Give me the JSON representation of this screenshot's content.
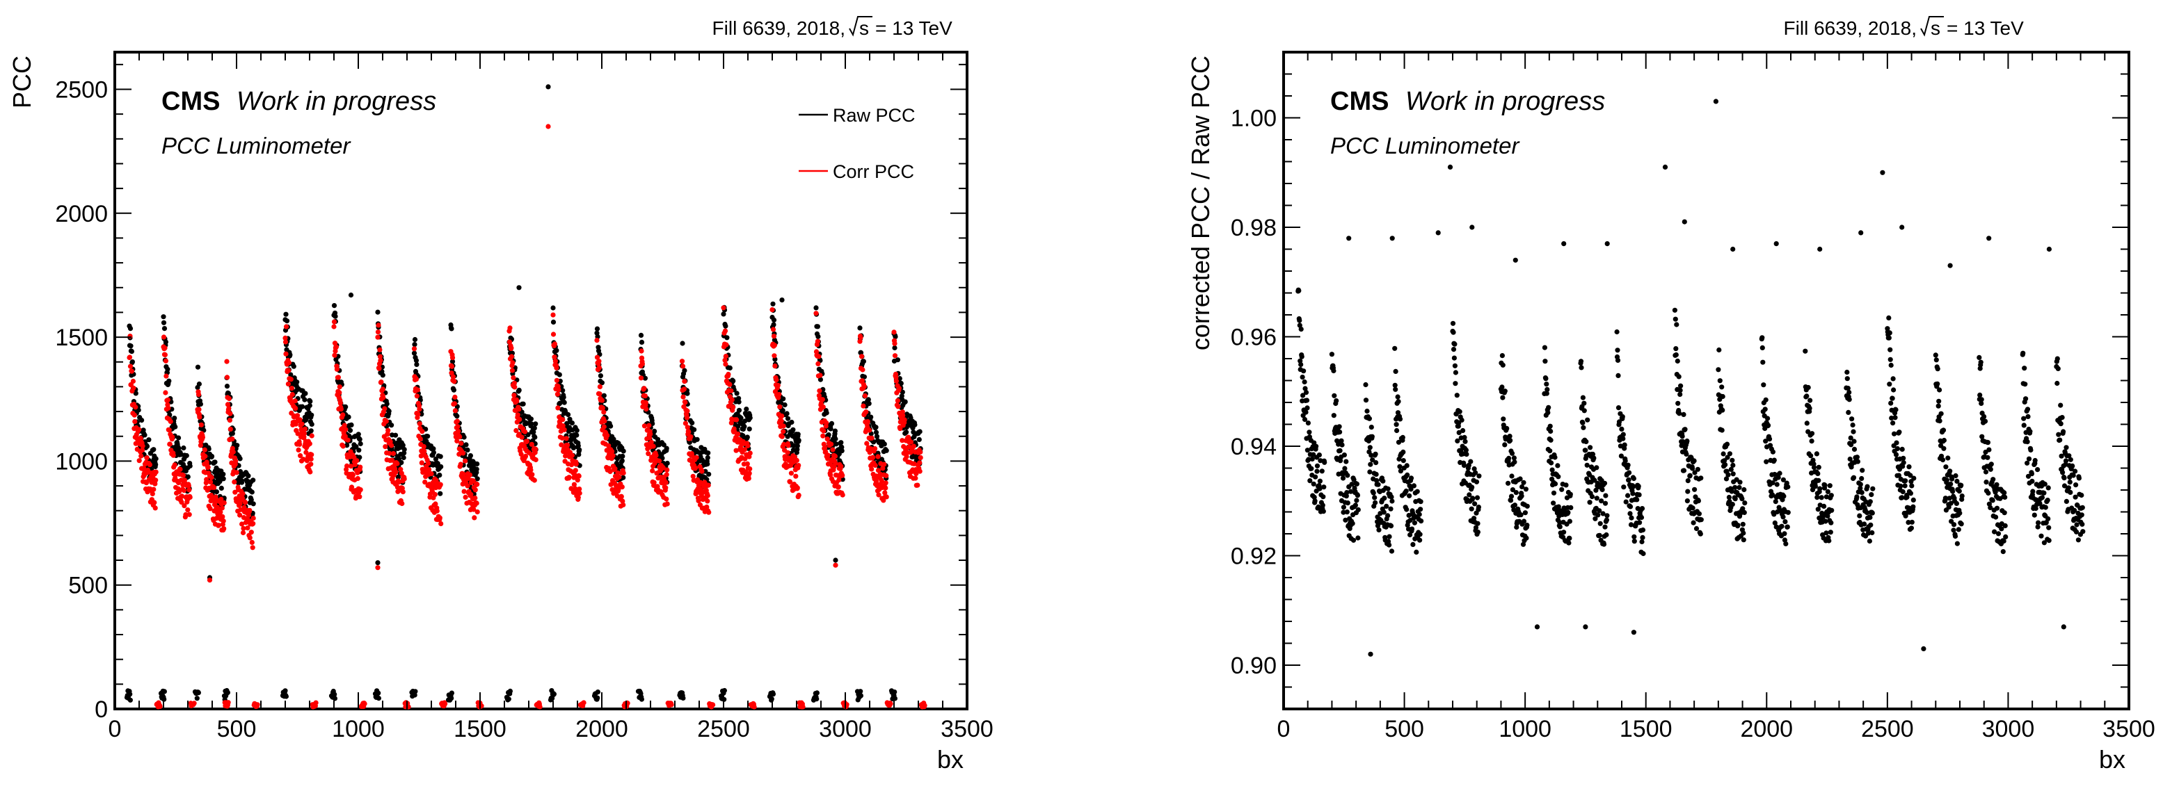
{
  "chart_data": [
    {
      "type": "scatter",
      "header": "Fill 6639,  2018,",
      "sqrt_s_label": "s",
      "energy_label": "= 13 TeV",
      "experiment_label": "CMS",
      "status_label": "Work in progress",
      "sub_label": "PCC Luminometer",
      "xlabel": "bx",
      "ylabel": "PCC",
      "xlim": [
        0,
        3500
      ],
      "ylim": [
        0,
        2650
      ],
      "xticks": [
        "0",
        "500",
        "1000",
        "1500",
        "2000",
        "2500",
        "3000",
        "3500"
      ],
      "yticks": [
        0,
        500,
        1000,
        1500,
        2000,
        2500
      ],
      "ytick_labels": [
        "0",
        "500",
        "1000",
        "1500",
        "2000",
        "2500"
      ],
      "legend_position": "top-right",
      "train_starts": [
        60,
        200,
        340,
        460,
        700,
        900,
        1080,
        1230,
        1380,
        1620,
        1800,
        1980,
        2160,
        2330,
        2500,
        2700,
        2880,
        3060,
        3200
      ],
      "train_length": 110,
      "series": [
        {
          "name": "Raw PCC",
          "color": "#000000",
          "train_peaks": [
            1520,
            1560,
            1320,
            1380,
            1590,
            1600,
            1580,
            1460,
            1520,
            1560,
            1600,
            1520,
            1470,
            1420,
            1600,
            1600,
            1590,
            1520,
            1500
          ],
          "train_ends": [
            960,
            920,
            860,
            820,
            1160,
            1000,
            960,
            920,
            900,
            1060,
            1020,
            960,
            960,
            940,
            1100,
            1020,
            980,
            980,
            1040
          ],
          "spread": 80,
          "outliers": [
            {
              "x": 1780,
              "y": 2510
            },
            {
              "x": 1660,
              "y": 1700
            },
            {
              "x": 970,
              "y": 1670
            },
            {
              "x": 2740,
              "y": 1650
            },
            {
              "x": 390,
              "y": 530
            },
            {
              "x": 1080,
              "y": 590
            },
            {
              "x": 2960,
              "y": 600
            }
          ],
          "abort_gap_level": 55
        },
        {
          "name": "Corr PCC",
          "color": "#ff0000",
          "train_peaks": [
            1480,
            1500,
            1280,
            1340,
            1540,
            1560,
            1520,
            1420,
            1470,
            1500,
            1540,
            1460,
            1420,
            1380,
            1560,
            1560,
            1540,
            1470,
            1460
          ],
          "train_ends": [
            860,
            800,
            760,
            700,
            1000,
            880,
            860,
            800,
            800,
            960,
            880,
            860,
            860,
            840,
            960,
            900,
            880,
            880,
            940
          ],
          "spread": 80,
          "outliers": [
            {
              "x": 1780,
              "y": 2350
            },
            {
              "x": 390,
              "y": 520
            },
            {
              "x": 1080,
              "y": 570
            },
            {
              "x": 2960,
              "y": 580
            }
          ],
          "abort_gap_level": 0
        }
      ]
    },
    {
      "type": "scatter",
      "header": "Fill 6639,  2018,",
      "sqrt_s_label": "s",
      "energy_label": "= 13 TeV",
      "experiment_label": "CMS",
      "status_label": "Work in progress",
      "sub_label": "PCC Luminometer",
      "xlabel": "bx",
      "ylabel": "corrected PCC  / Raw PCC",
      "xlim": [
        0,
        3500
      ],
      "ylim": [
        0.892,
        1.012
      ],
      "xticks": [
        "0",
        "500",
        "1000",
        "1500",
        "2000",
        "2500",
        "3000",
        "3500"
      ],
      "yticks": [
        0.9,
        0.92,
        0.94,
        0.96,
        0.98,
        1.0
      ],
      "ytick_labels": [
        "0.90",
        "0.92",
        "0.94",
        "0.96",
        "0.98",
        "1.00"
      ],
      "train_starts": [
        60,
        200,
        340,
        460,
        700,
        900,
        1080,
        1230,
        1380,
        1620,
        1800,
        1980,
        2160,
        2330,
        2500,
        2700,
        2880,
        3060,
        3200
      ],
      "train_length": 110,
      "series": [
        {
          "color": "#000000",
          "train_peaks": [
            0.968,
            0.955,
            0.95,
            0.955,
            0.961,
            0.956,
            0.955,
            0.955,
            0.955,
            0.963,
            0.955,
            0.955,
            0.955,
            0.953,
            0.965,
            0.955,
            0.955,
            0.954,
            0.953
          ],
          "train_ends": [
            0.93,
            0.926,
            0.925,
            0.924,
            0.928,
            0.926,
            0.925,
            0.926,
            0.925,
            0.928,
            0.926,
            0.926,
            0.926,
            0.926,
            0.928,
            0.926,
            0.925,
            0.926,
            0.927
          ],
          "spread": 0.006,
          "outliers": [
            {
              "x": 1790,
              "y": 1.003
            },
            {
              "x": 690,
              "y": 0.991
            },
            {
              "x": 1580,
              "y": 0.991
            },
            {
              "x": 2480,
              "y": 0.99
            },
            {
              "x": 1660,
              "y": 0.981
            },
            {
              "x": 2560,
              "y": 0.98
            },
            {
              "x": 270,
              "y": 0.978
            },
            {
              "x": 450,
              "y": 0.978
            },
            {
              "x": 640,
              "y": 0.979
            },
            {
              "x": 780,
              "y": 0.98
            },
            {
              "x": 1160,
              "y": 0.977
            },
            {
              "x": 1340,
              "y": 0.977
            },
            {
              "x": 2040,
              "y": 0.977
            },
            {
              "x": 2220,
              "y": 0.976
            },
            {
              "x": 2390,
              "y": 0.979
            },
            {
              "x": 2920,
              "y": 0.978
            },
            {
              "x": 3170,
              "y": 0.976
            },
            {
              "x": 960,
              "y": 0.974
            },
            {
              "x": 1860,
              "y": 0.976
            },
            {
              "x": 2760,
              "y": 0.973
            },
            {
              "x": 360,
              "y": 0.902
            },
            {
              "x": 2650,
              "y": 0.903
            },
            {
              "x": 3230,
              "y": 0.907
            },
            {
              "x": 1050,
              "y": 0.907
            },
            {
              "x": 1250,
              "y": 0.907
            },
            {
              "x": 1450,
              "y": 0.906
            }
          ]
        }
      ]
    }
  ]
}
